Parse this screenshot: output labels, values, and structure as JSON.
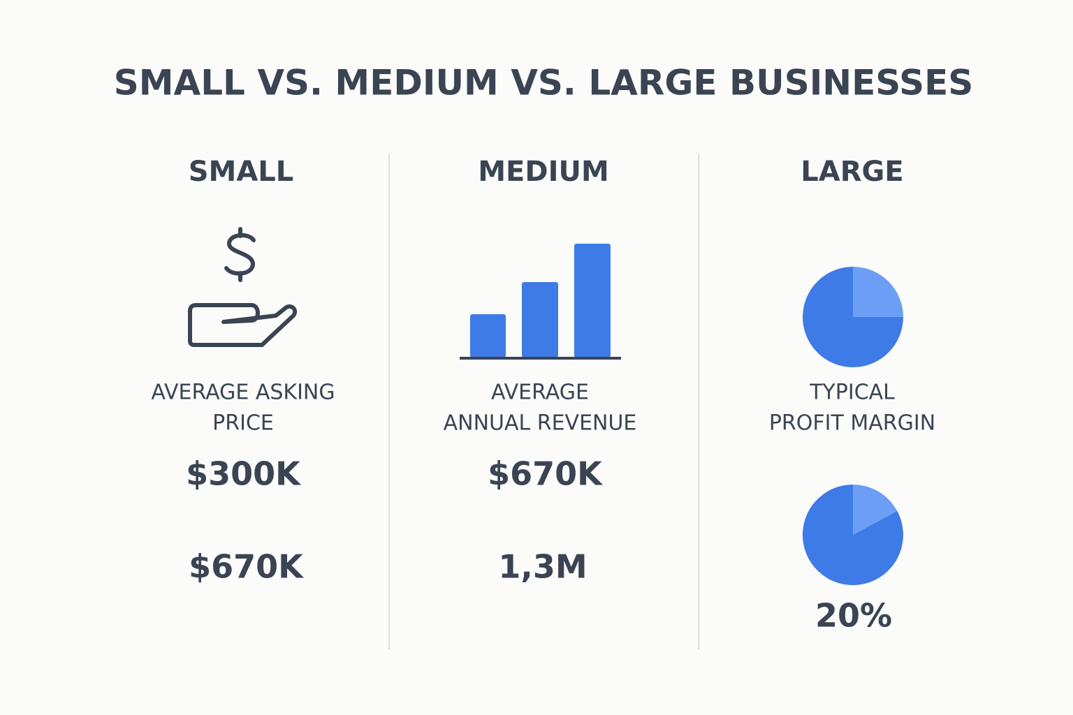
{
  "title": "SMALL VS. MEDIUM VS. LARGE BUSINESSES",
  "columns": [
    {
      "heading": "SMALL",
      "label_lines": [
        "AVERAGE ASKING",
        "PRICE"
      ],
      "values": [
        "$300K",
        "$670K"
      ]
    },
    {
      "heading": "MEDIUM",
      "label_lines": [
        "AVERAGE",
        "ANNUAL REVENUE"
      ],
      "values": [
        "$670K",
        "1,3M"
      ]
    },
    {
      "heading": "LARGE",
      "label_lines": [
        "TYPICAL",
        "PROFIT MARGIN"
      ],
      "values": [
        "20%"
      ]
    }
  ]
}
